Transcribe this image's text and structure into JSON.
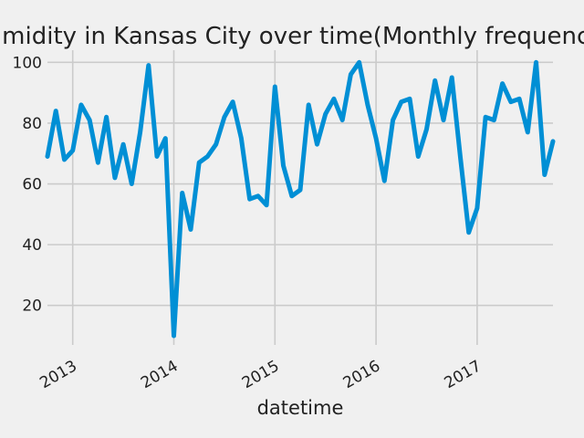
{
  "chart_data": {
    "type": "line",
    "title": "Humidity in Kansas City over time(Monthly frequency)",
    "xlabel": "datetime",
    "ylabel": "",
    "x_ticks": [
      "2013",
      "2014",
      "2015",
      "2016",
      "2017"
    ],
    "y_ticks": [
      20,
      40,
      60,
      80,
      100
    ],
    "xlim": [
      "2012-10",
      "2017-10"
    ],
    "ylim": [
      7,
      104
    ],
    "grid": true,
    "colors": {
      "line": "#008fd5",
      "background": "#f0f0f0",
      "grid": "#cbcbcb"
    },
    "series": [
      {
        "x": [
          "2012-10",
          "2012-11",
          "2012-12",
          "2013-01",
          "2013-02",
          "2013-03",
          "2013-04",
          "2013-05",
          "2013-06",
          "2013-07",
          "2013-08",
          "2013-09",
          "2013-10",
          "2013-11",
          "2013-12",
          "2014-01",
          "2014-02",
          "2014-03",
          "2014-04",
          "2014-05",
          "2014-06",
          "2014-07",
          "2014-08",
          "2014-09",
          "2014-10",
          "2014-11",
          "2014-12",
          "2015-01",
          "2015-02",
          "2015-03",
          "2015-04",
          "2015-05",
          "2015-06",
          "2015-07",
          "2015-08",
          "2015-09",
          "2015-10",
          "2015-11",
          "2015-12",
          "2016-01",
          "2016-02",
          "2016-03",
          "2016-04",
          "2016-05",
          "2016-06",
          "2016-07",
          "2016-08",
          "2016-09",
          "2016-10",
          "2016-11",
          "2016-12",
          "2017-01",
          "2017-02",
          "2017-03",
          "2017-04",
          "2017-05",
          "2017-06",
          "2017-07",
          "2017-08",
          "2017-09",
          "2017-10"
        ],
        "values": [
          69,
          84,
          68,
          71,
          86,
          81,
          67,
          82,
          62,
          73,
          60,
          77,
          99,
          69,
          75,
          10,
          57,
          45,
          67,
          69,
          73,
          82,
          87,
          75,
          55,
          56,
          53,
          92,
          66,
          56,
          58,
          86,
          73,
          83,
          88,
          81,
          96,
          100,
          86,
          75,
          61,
          81,
          87,
          88,
          69,
          78,
          94,
          81,
          95,
          69,
          44,
          52,
          82,
          81,
          93,
          87,
          88,
          77,
          100,
          63,
          74
        ]
      }
    ]
  }
}
